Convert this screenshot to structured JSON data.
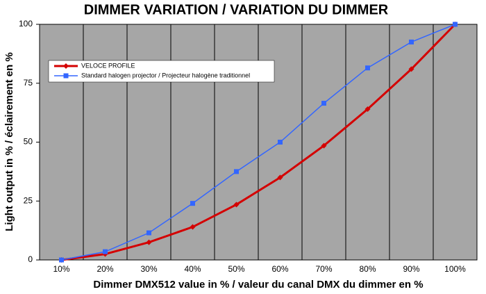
{
  "chart_data": {
    "type": "line",
    "title": "DIMMER VARIATION / VARIATION DU DIMMER",
    "x_label": "Dimmer DMX512 value in % / valeur du canal DMX du dimmer en %",
    "y_label": "Light output in % / éclairement en %",
    "categories": [
      "10%",
      "20%",
      "30%",
      "40%",
      "50%",
      "60%",
      "70%",
      "80%",
      "90%",
      "100%"
    ],
    "series": [
      {
        "name": "VELOCE PROFILE",
        "color": "#d40000",
        "marker": "diamond",
        "values": [
          0,
          2.5,
          7.5,
          14,
          23.5,
          35,
          48.5,
          64,
          81,
          100
        ]
      },
      {
        "name": "Standard halogen projector / Projecteur halogène traditionnel",
        "color": "#3366ff",
        "marker": "square",
        "values": [
          0,
          3.5,
          11.5,
          24,
          37.5,
          50,
          66.5,
          81.5,
          92.5,
          100
        ]
      }
    ],
    "ylim": [
      0,
      100
    ],
    "yticks": [
      0,
      25,
      50,
      75,
      100
    ]
  }
}
